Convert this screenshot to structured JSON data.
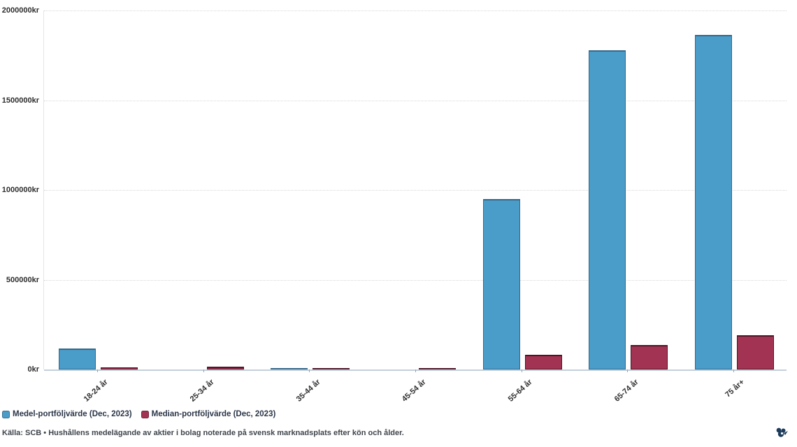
{
  "chart_data": {
    "type": "bar",
    "orientation": "vertical-grouped",
    "categories": [
      "18-24 år",
      "25-34 år",
      "35-44 år",
      "45-54 år",
      "55-64 år",
      "65-74 år",
      "75 år+"
    ],
    "series": [
      {
        "name": "Medel-portföljvärde (Dec, 2023)",
        "color": "#4a9cc9",
        "border_color": "#35688a",
        "values": [
          115000,
          0,
          3000,
          0,
          950000,
          1780000,
          1862000
        ]
      },
      {
        "name": "Median-portföljvärde (Dec, 2023)",
        "color": "#a23352",
        "border_color": "#4d1527",
        "values": [
          13000,
          16000,
          8000,
          3000,
          82000,
          137000,
          190000
        ]
      }
    ],
    "title": "",
    "xlabel": "",
    "ylabel": "",
    "ylim": [
      0,
      2000000
    ],
    "ytick_step": 500000,
    "ytick_labels": [
      "0kr",
      "500000kr",
      "1000000kr",
      "1500000kr",
      "2000000kr"
    ],
    "grid": "horizontal-dotted",
    "legend_position": "bottom-left",
    "unit": "kr"
  },
  "footer": {
    "source": "Källa: SCB • Hushållens medelägande av aktier i bolag noterade på svensk marknadsplats efter kön och ålder."
  },
  "colors": {
    "background": "#ffffff",
    "axis_baseline": "#c2cfda",
    "gridline": "#d8d8d8",
    "text": "#2e2e2e",
    "logo": "#1d3c5b"
  }
}
